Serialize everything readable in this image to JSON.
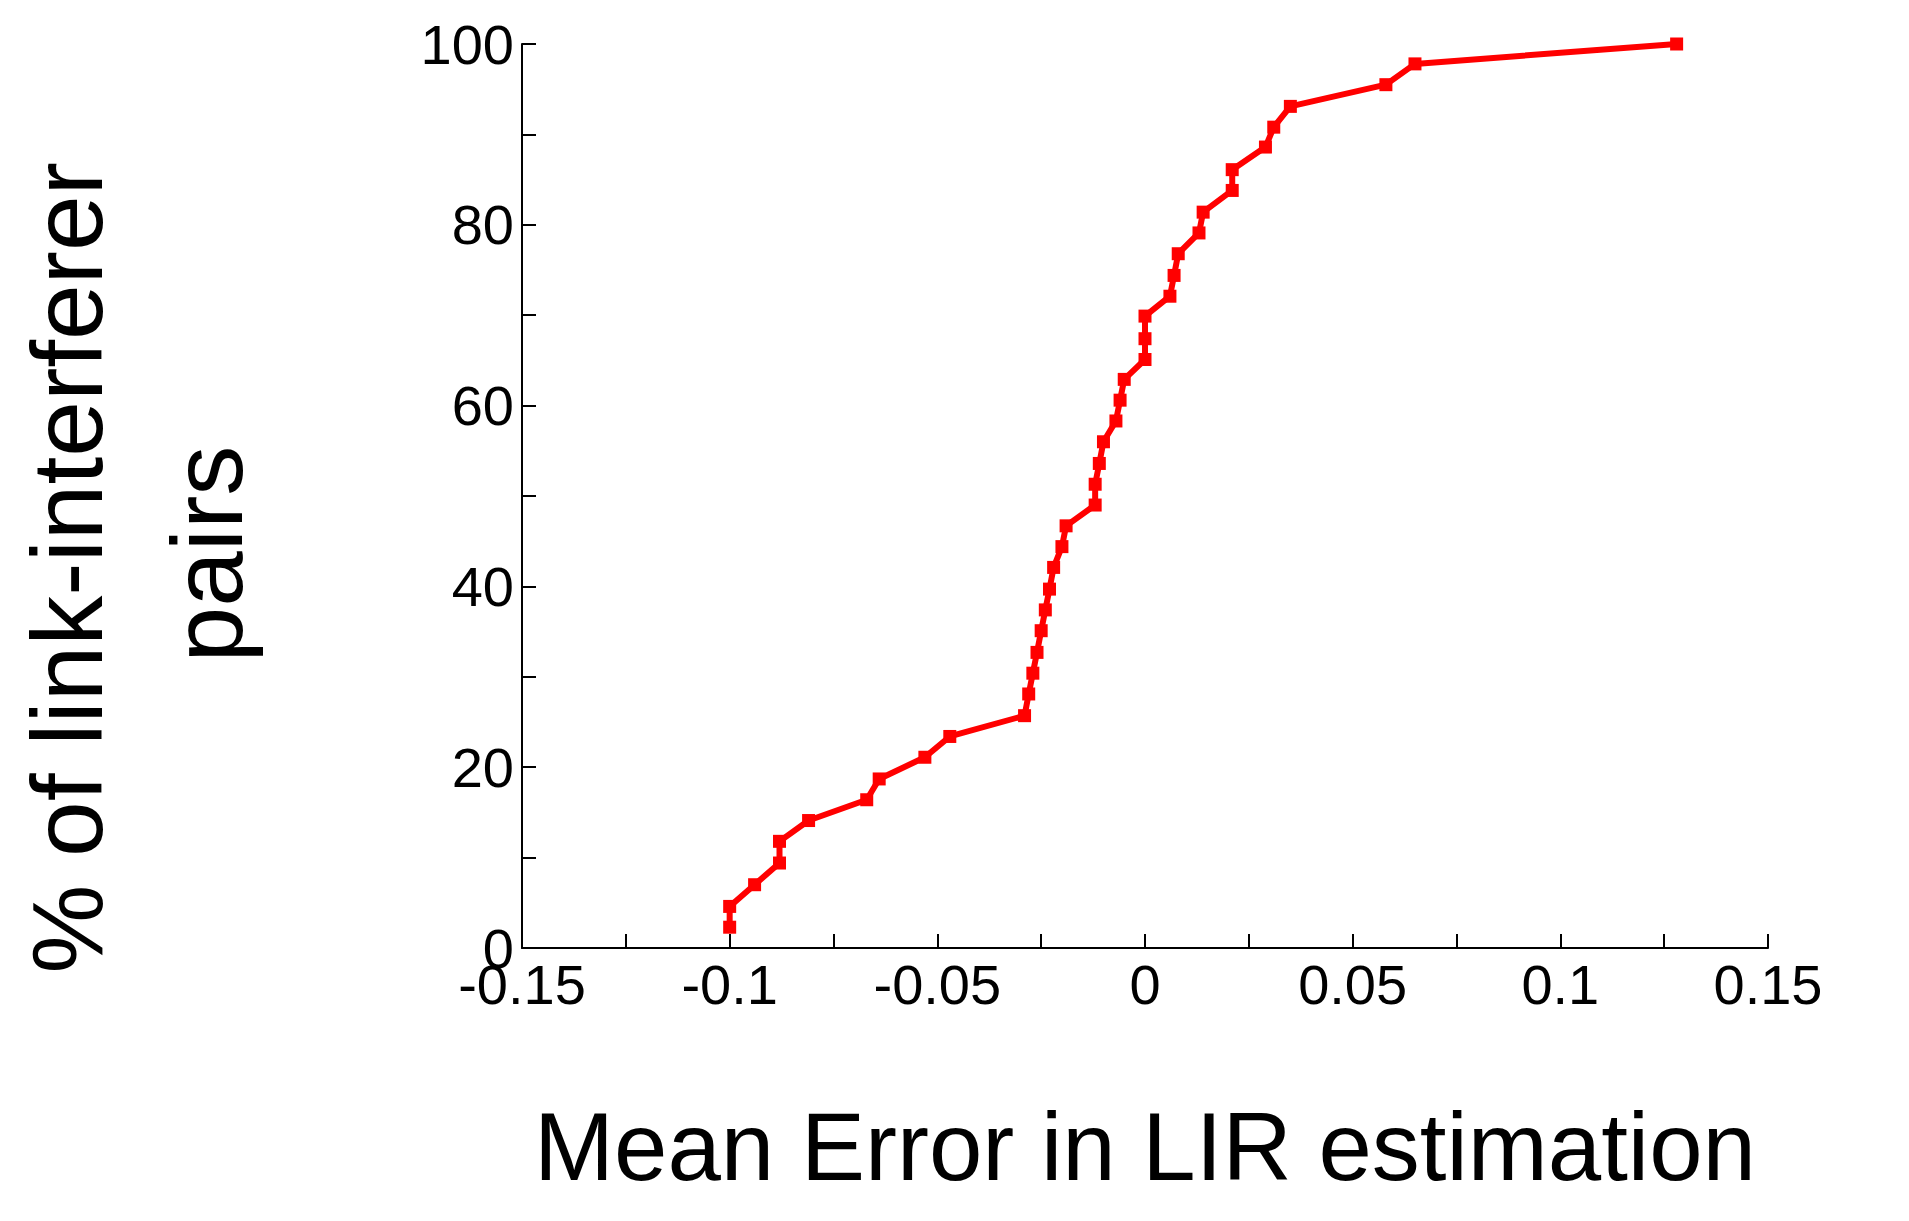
{
  "chart_data": {
    "type": "line",
    "xlabel": "Mean Error in LIR estimation",
    "ylabel": "% of link-interferer pairs",
    "x": [
      -0.1,
      -0.1,
      -0.094,
      -0.088,
      -0.088,
      -0.081,
      -0.067,
      -0.064,
      -0.053,
      -0.047,
      -0.029,
      -0.028,
      -0.027,
      -0.026,
      -0.025,
      -0.024,
      -0.023,
      -0.022,
      -0.02,
      -0.019,
      -0.012,
      -0.012,
      -0.011,
      -0.01,
      -0.007,
      -0.006,
      -0.005,
      0,
      0,
      0,
      0.006,
      0.007,
      0.008,
      0.013,
      0.014,
      0.021,
      0.021,
      0.029,
      0.031,
      0.035,
      0.058,
      0.065,
      0.128
    ],
    "series": [
      {
        "color": "#ff0000",
        "values": [
          2.3,
          4.6,
          7.0,
          9.4,
          11.8,
          14.1,
          16.4,
          18.7,
          21.1,
          23.4,
          25.7,
          28.1,
          30.4,
          32.7,
          35.1,
          37.4,
          39.7,
          42.1,
          44.4,
          46.7,
          49.0,
          51.3,
          53.6,
          56.0,
          58.3,
          60.6,
          62.9,
          65.1,
          67.4,
          69.9,
          72.1,
          74.4,
          76.8,
          79.1,
          81.4,
          83.8,
          86.1,
          88.6,
          90.8,
          93.1,
          95.5,
          97.8,
          100
        ]
      }
    ],
    "xlim": [
      -0.15,
      0.15
    ],
    "xticks": [
      -0.15,
      {
        "value": -0.125,
        "label": null
      },
      -0.1,
      {
        "value": -0.075,
        "label": null
      },
      -0.05,
      {
        "value": -0.025,
        "label": null
      },
      0,
      {
        "value": 0.025,
        "label": null
      },
      0.05,
      {
        "value": 0.075,
        "label": null
      },
      0.1,
      {
        "value": 0.125,
        "label": null
      },
      0.15
    ],
    "ylim": [
      0,
      100
    ],
    "yticks": [
      0,
      {
        "value": 10,
        "label": null
      },
      20,
      {
        "value": 30,
        "label": null
      },
      40,
      {
        "value": 50,
        "label": null
      },
      60,
      {
        "value": 70,
        "label": null
      },
      80,
      {
        "value": 90,
        "label": null
      },
      100
    ],
    "grid": false,
    "marker": "square",
    "line_style": "solid"
  }
}
